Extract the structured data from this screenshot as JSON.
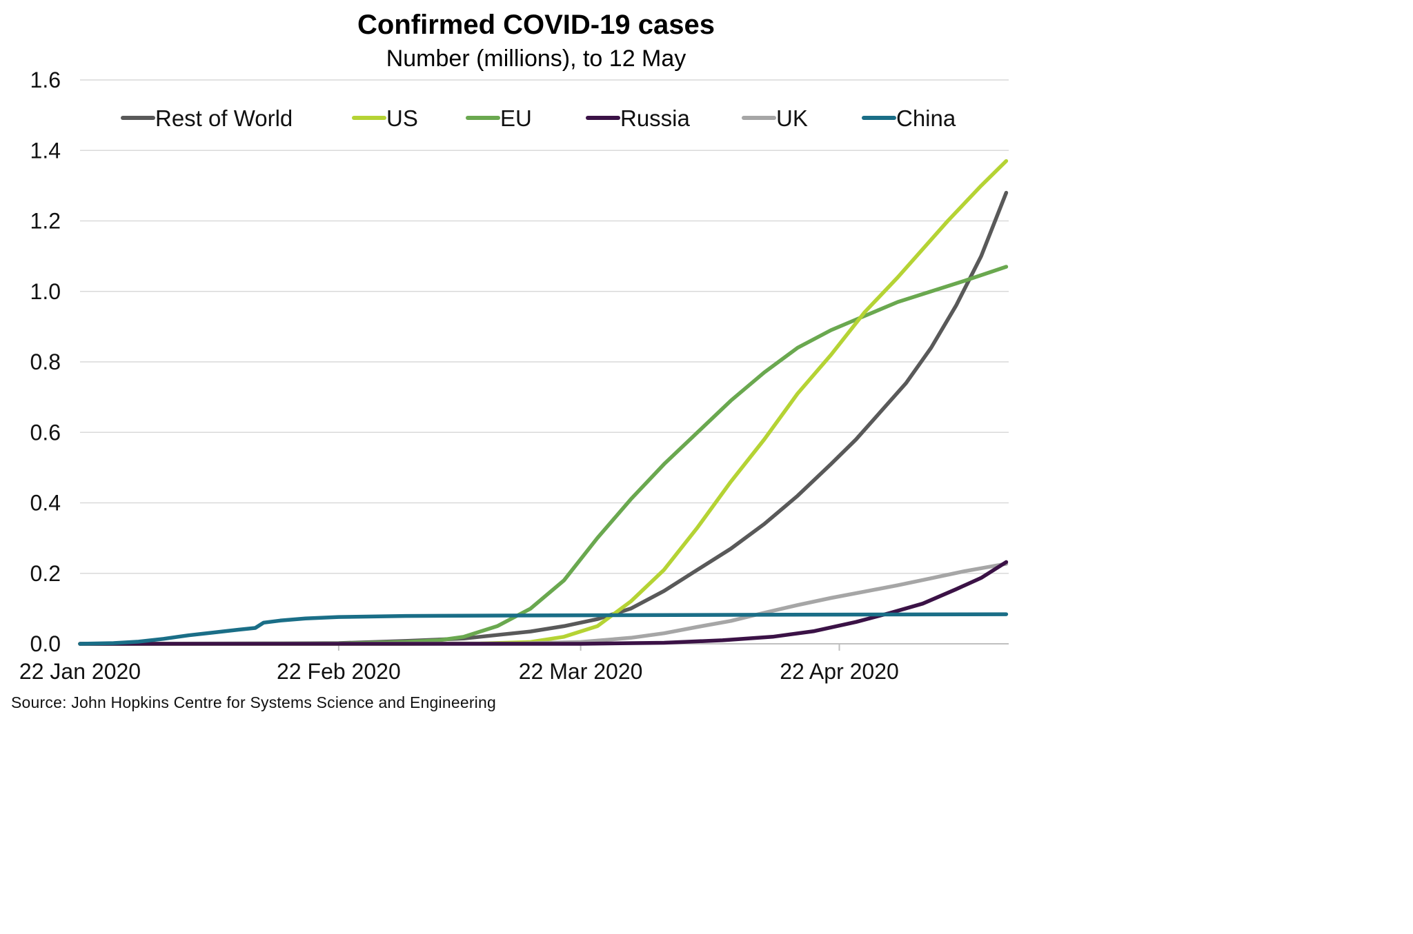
{
  "title": "Confirmed COVID-19 cases",
  "subtitle": "Number (millions), to 12 May",
  "source": "Source: John Hopkins Centre for Systems Science and Engineering",
  "chart_data": {
    "type": "line",
    "title": "Confirmed COVID-19 cases",
    "subtitle": "Number (millions), to 12 May",
    "xlabel": "",
    "ylabel": "",
    "x_start": "2020-01-22",
    "x_end": "2020-05-12",
    "x_ticks": [
      {
        "date": "2020-01-22",
        "label": "22 Jan 2020"
      },
      {
        "date": "2020-02-22",
        "label": "22 Feb 2020"
      },
      {
        "date": "2020-03-22",
        "label": "22 Mar 2020"
      },
      {
        "date": "2020-04-22",
        "label": "22 Apr 2020"
      }
    ],
    "ylim": [
      0,
      1.6
    ],
    "y_ticks": [
      {
        "value": 0,
        "label": "0.0"
      },
      {
        "value": 0.2,
        "label": "0.2"
      },
      {
        "value": 0.4,
        "label": "0.4"
      },
      {
        "value": 0.6,
        "label": "0.6"
      },
      {
        "value": 0.8,
        "label": "0.8"
      },
      {
        "value": 1.0,
        "label": "1.0"
      },
      {
        "value": 1.2,
        "label": "1.2"
      },
      {
        "value": 1.4,
        "label": "1.4"
      },
      {
        "value": 1.6,
        "label": "1.6"
      }
    ],
    "grid": "horizontal",
    "legend_position": "top",
    "series": [
      {
        "name": "Rest of World",
        "color": "#595959",
        "points": [
          [
            "2020-01-22",
            0
          ],
          [
            "2020-02-15",
            0.001
          ],
          [
            "2020-02-22",
            0.002
          ],
          [
            "2020-03-01",
            0.008
          ],
          [
            "2020-03-08",
            0.015
          ],
          [
            "2020-03-12",
            0.025
          ],
          [
            "2020-03-16",
            0.035
          ],
          [
            "2020-03-20",
            0.05
          ],
          [
            "2020-03-24",
            0.07
          ],
          [
            "2020-03-28",
            0.1
          ],
          [
            "2020-04-01",
            0.15
          ],
          [
            "2020-04-05",
            0.21
          ],
          [
            "2020-04-09",
            0.27
          ],
          [
            "2020-04-13",
            0.34
          ],
          [
            "2020-04-17",
            0.42
          ],
          [
            "2020-04-21",
            0.51
          ],
          [
            "2020-04-24",
            0.58
          ],
          [
            "2020-04-27",
            0.66
          ],
          [
            "2020-04-30",
            0.74
          ],
          [
            "2020-05-03",
            0.84
          ],
          [
            "2020-05-06",
            0.96
          ],
          [
            "2020-05-09",
            1.1
          ],
          [
            "2020-05-12",
            1.28
          ]
        ]
      },
      {
        "name": "US",
        "color": "#b5d334",
        "points": [
          [
            "2020-01-22",
            0
          ],
          [
            "2020-03-01",
            0
          ],
          [
            "2020-03-10",
            0.001
          ],
          [
            "2020-03-16",
            0.005
          ],
          [
            "2020-03-20",
            0.02
          ],
          [
            "2020-03-24",
            0.05
          ],
          [
            "2020-03-28",
            0.12
          ],
          [
            "2020-04-01",
            0.21
          ],
          [
            "2020-04-05",
            0.33
          ],
          [
            "2020-04-09",
            0.46
          ],
          [
            "2020-04-13",
            0.58
          ],
          [
            "2020-04-17",
            0.71
          ],
          [
            "2020-04-21",
            0.82
          ],
          [
            "2020-04-25",
            0.94
          ],
          [
            "2020-04-29",
            1.04
          ],
          [
            "2020-05-02",
            1.12
          ],
          [
            "2020-05-05",
            1.2
          ],
          [
            "2020-05-09",
            1.3
          ],
          [
            "2020-05-12",
            1.37
          ]
        ]
      },
      {
        "name": "EU",
        "color": "#6aa84f",
        "points": [
          [
            "2020-01-22",
            0
          ],
          [
            "2020-02-22",
            0.001
          ],
          [
            "2020-03-01",
            0.005
          ],
          [
            "2020-03-05",
            0.01
          ],
          [
            "2020-03-08",
            0.02
          ],
          [
            "2020-03-12",
            0.05
          ],
          [
            "2020-03-16",
            0.1
          ],
          [
            "2020-03-20",
            0.18
          ],
          [
            "2020-03-24",
            0.3
          ],
          [
            "2020-03-28",
            0.41
          ],
          [
            "2020-04-01",
            0.51
          ],
          [
            "2020-04-05",
            0.6
          ],
          [
            "2020-04-09",
            0.69
          ],
          [
            "2020-04-13",
            0.77
          ],
          [
            "2020-04-17",
            0.84
          ],
          [
            "2020-04-21",
            0.89
          ],
          [
            "2020-04-25",
            0.93
          ],
          [
            "2020-04-29",
            0.97
          ],
          [
            "2020-05-03",
            1.0
          ],
          [
            "2020-05-07",
            1.03
          ],
          [
            "2020-05-12",
            1.07
          ]
        ]
      },
      {
        "name": "Russia",
        "color": "#3b1246",
        "points": [
          [
            "2020-01-22",
            0
          ],
          [
            "2020-03-22",
            0
          ],
          [
            "2020-04-01",
            0.003
          ],
          [
            "2020-04-08",
            0.01
          ],
          [
            "2020-04-14",
            0.02
          ],
          [
            "2020-04-19",
            0.036
          ],
          [
            "2020-04-24",
            0.062
          ],
          [
            "2020-04-28",
            0.087
          ],
          [
            "2020-05-02",
            0.114
          ],
          [
            "2020-05-06",
            0.155
          ],
          [
            "2020-05-09",
            0.187
          ],
          [
            "2020-05-12",
            0.232
          ]
        ]
      },
      {
        "name": "UK",
        "color": "#a6a6a6",
        "points": [
          [
            "2020-01-22",
            0
          ],
          [
            "2020-03-15",
            0.001
          ],
          [
            "2020-03-22",
            0.005
          ],
          [
            "2020-03-28",
            0.017
          ],
          [
            "2020-04-01",
            0.03
          ],
          [
            "2020-04-05",
            0.048
          ],
          [
            "2020-04-09",
            0.065
          ],
          [
            "2020-04-13",
            0.088
          ],
          [
            "2020-04-17",
            0.11
          ],
          [
            "2020-04-21",
            0.13
          ],
          [
            "2020-04-25",
            0.148
          ],
          [
            "2020-04-29",
            0.166
          ],
          [
            "2020-05-03",
            0.186
          ],
          [
            "2020-05-07",
            0.206
          ],
          [
            "2020-05-12",
            0.227
          ]
        ]
      },
      {
        "name": "China",
        "color": "#1a6e87",
        "points": [
          [
            "2020-01-22",
            0
          ],
          [
            "2020-01-26",
            0.002
          ],
          [
            "2020-01-29",
            0.006
          ],
          [
            "2020-02-01",
            0.014
          ],
          [
            "2020-02-04",
            0.024
          ],
          [
            "2020-02-07",
            0.032
          ],
          [
            "2020-02-10",
            0.04
          ],
          [
            "2020-02-12",
            0.045
          ],
          [
            "2020-02-13",
            0.06
          ],
          [
            "2020-02-15",
            0.066
          ],
          [
            "2020-02-18",
            0.072
          ],
          [
            "2020-02-22",
            0.076
          ],
          [
            "2020-03-01",
            0.079
          ],
          [
            "2020-03-22",
            0.081
          ],
          [
            "2020-04-22",
            0.083
          ],
          [
            "2020-05-12",
            0.084
          ]
        ]
      }
    ]
  }
}
